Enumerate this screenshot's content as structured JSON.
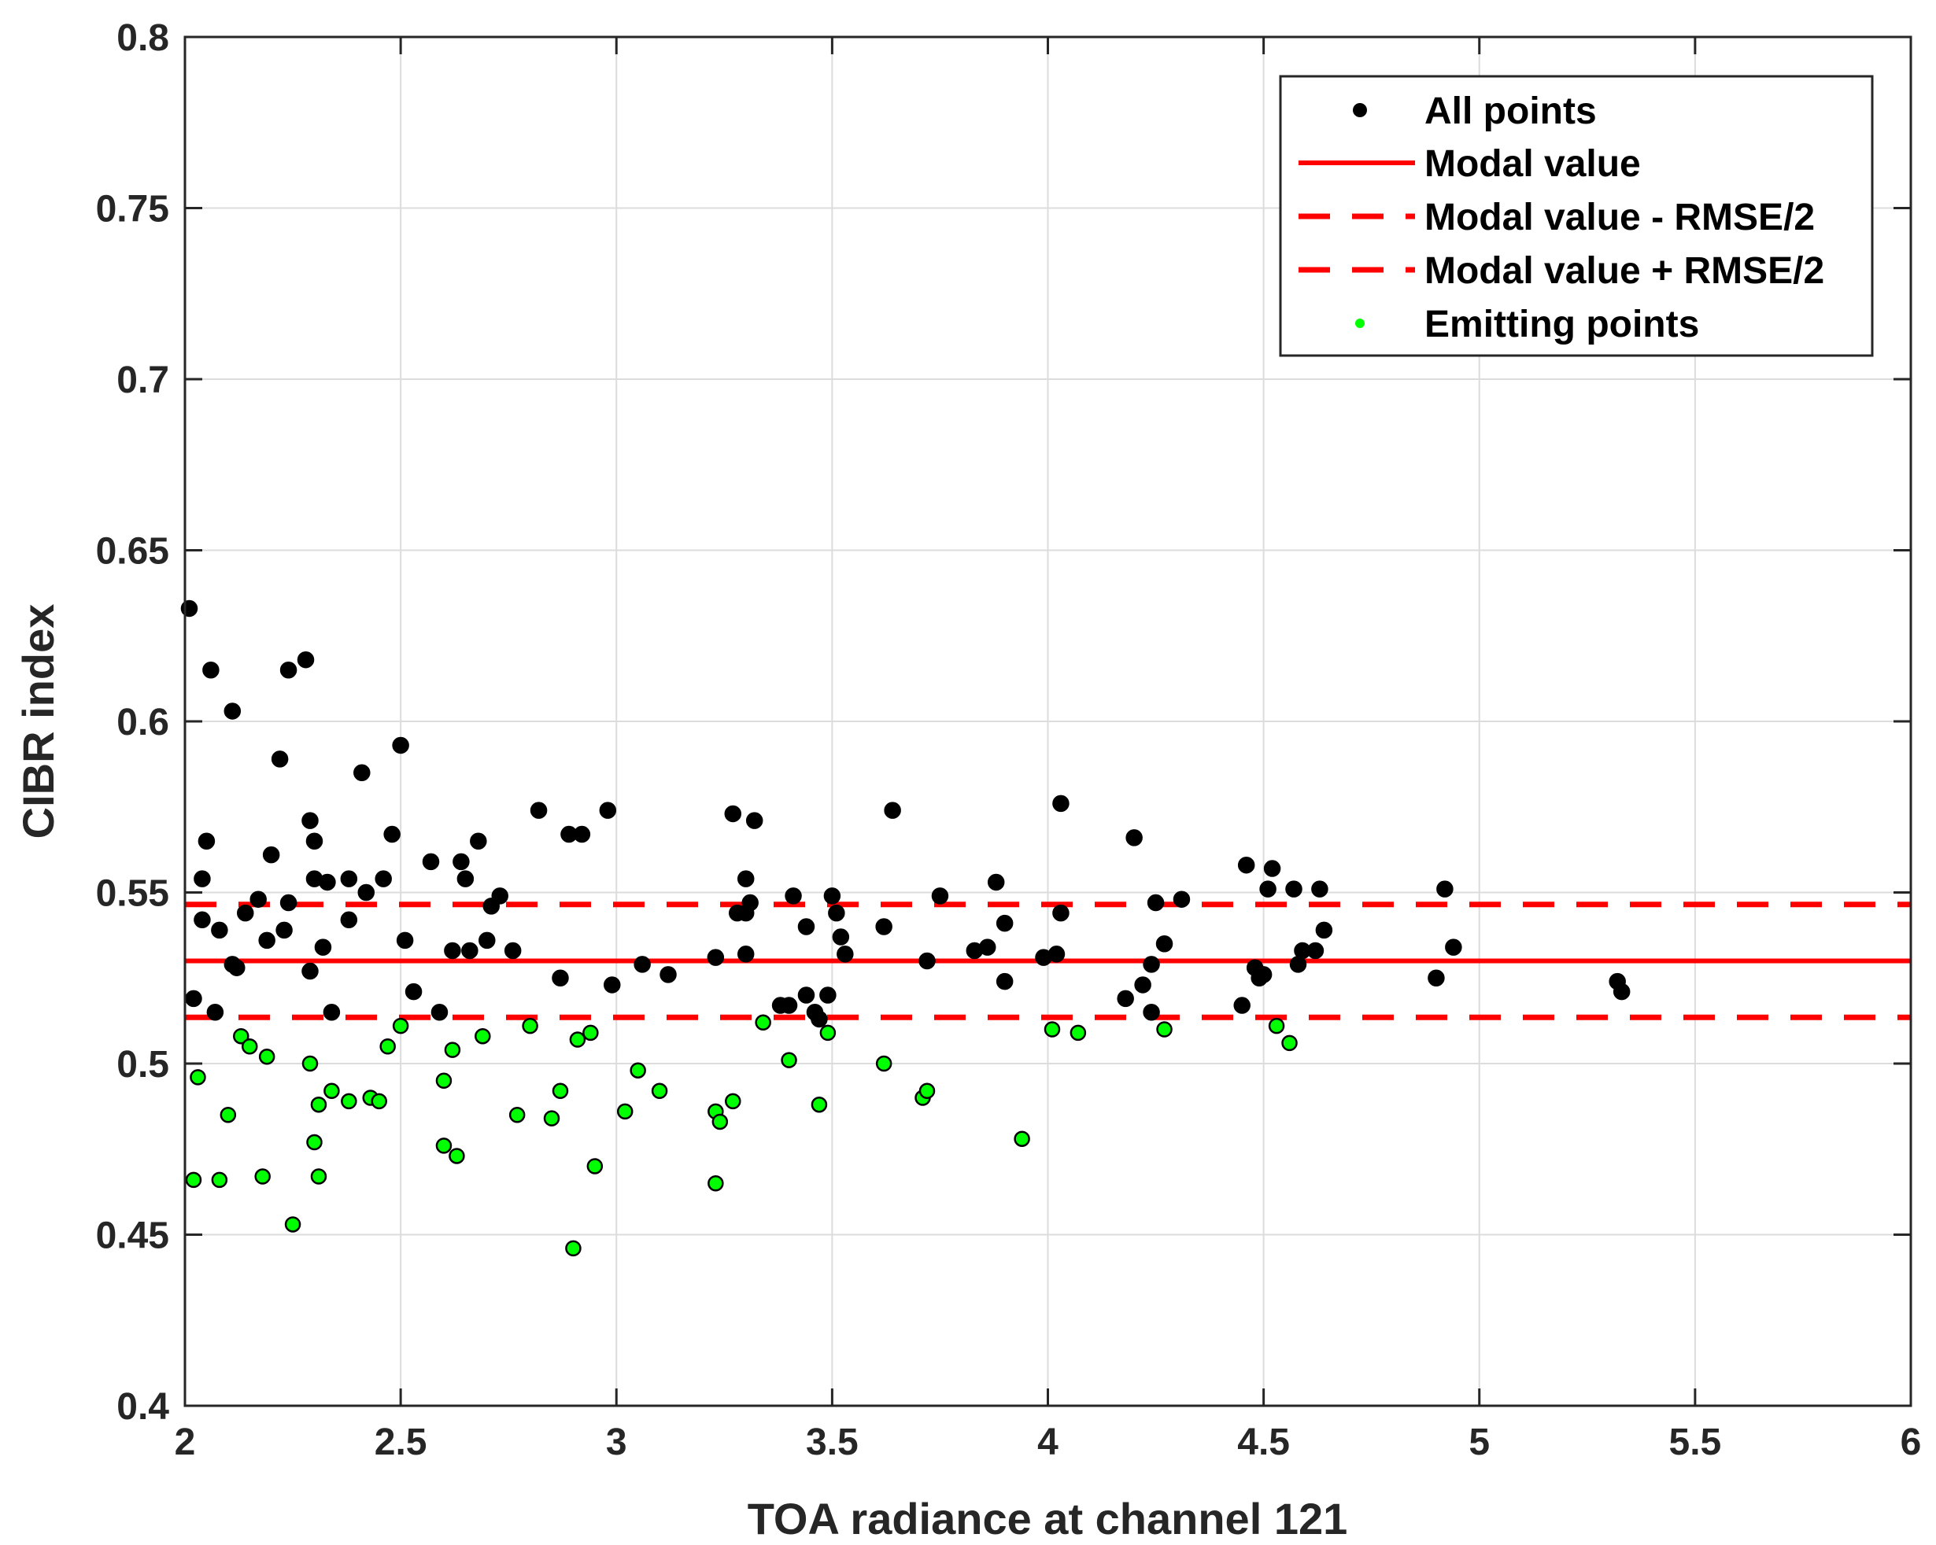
{
  "chart_data": {
    "type": "scatter",
    "xlabel": "TOA radiance at channel 121",
    "ylabel": "CIBR index",
    "xlim": [
      2,
      6
    ],
    "ylim": [
      0.4,
      0.8
    ],
    "xticks": [
      2,
      2.5,
      3,
      3.5,
      4,
      4.5,
      5,
      5.5,
      6
    ],
    "xtick_labels": [
      "2",
      "2.5",
      "3",
      "3.5",
      "4",
      "4.5",
      "5",
      "5.5",
      "6"
    ],
    "yticks": [
      0.4,
      0.45,
      0.5,
      0.55,
      0.6,
      0.65,
      0.7,
      0.75,
      0.8
    ],
    "ytick_labels": [
      "0.4",
      "0.45",
      "0.5",
      "0.55",
      "0.6",
      "0.65",
      "0.7",
      "0.75",
      "0.8"
    ],
    "grid": true,
    "legend_position": "top-right",
    "colors": {
      "all": "#000000",
      "emitting": "#00ff00",
      "modal": "#ff0000",
      "axis": "#262626",
      "grid": "#dcdcdc"
    },
    "lines": {
      "modal": 0.53,
      "lower": 0.5135,
      "upper": 0.5465
    },
    "legend": [
      {
        "label": "All points",
        "style": "black-dot"
      },
      {
        "label": "Modal value",
        "style": "solid-red"
      },
      {
        "label": "Modal value - RMSE/2",
        "style": "dashed-red"
      },
      {
        "label": "Modal value + RMSE/2",
        "style": "dashed-red"
      },
      {
        "label": "Emitting points",
        "style": "green-dot"
      }
    ],
    "series": [
      {
        "name": "All points",
        "points": [
          [
            2.01,
            0.633
          ],
          [
            2.02,
            0.519
          ],
          [
            2.04,
            0.554
          ],
          [
            2.04,
            0.542
          ],
          [
            2.05,
            0.565
          ],
          [
            2.06,
            0.615
          ],
          [
            2.07,
            0.515
          ],
          [
            2.08,
            0.539
          ],
          [
            2.11,
            0.603
          ],
          [
            2.11,
            0.529
          ],
          [
            2.12,
            0.528
          ],
          [
            2.14,
            0.544
          ],
          [
            2.17,
            0.548
          ],
          [
            2.19,
            0.536
          ],
          [
            2.2,
            0.561
          ],
          [
            2.22,
            0.589
          ],
          [
            2.23,
            0.539
          ],
          [
            2.24,
            0.547
          ],
          [
            2.24,
            0.615
          ],
          [
            2.28,
            0.618
          ],
          [
            2.29,
            0.527
          ],
          [
            2.29,
            0.571
          ],
          [
            2.3,
            0.565
          ],
          [
            2.3,
            0.554
          ],
          [
            2.32,
            0.534
          ],
          [
            2.33,
            0.553
          ],
          [
            2.34,
            0.515
          ],
          [
            2.38,
            0.542
          ],
          [
            2.38,
            0.554
          ],
          [
            2.41,
            0.585
          ],
          [
            2.42,
            0.55
          ],
          [
            2.46,
            0.554
          ],
          [
            2.48,
            0.567
          ],
          [
            2.5,
            0.593
          ],
          [
            2.51,
            0.536
          ],
          [
            2.53,
            0.521
          ],
          [
            2.57,
            0.559
          ],
          [
            2.59,
            0.515
          ],
          [
            2.62,
            0.533
          ],
          [
            2.64,
            0.559
          ],
          [
            2.65,
            0.554
          ],
          [
            2.66,
            0.533
          ],
          [
            2.68,
            0.565
          ],
          [
            2.7,
            0.536
          ],
          [
            2.71,
            0.546
          ],
          [
            2.73,
            0.549
          ],
          [
            2.76,
            0.533
          ],
          [
            2.82,
            0.574
          ],
          [
            2.87,
            0.525
          ],
          [
            2.89,
            0.567
          ],
          [
            2.92,
            0.567
          ],
          [
            2.98,
            0.574
          ],
          [
            2.99,
            0.523
          ],
          [
            3.06,
            0.529
          ],
          [
            3.12,
            0.526
          ],
          [
            3.23,
            0.531
          ],
          [
            3.27,
            0.573
          ],
          [
            3.28,
            0.544
          ],
          [
            3.3,
            0.554
          ],
          [
            3.3,
            0.544
          ],
          [
            3.3,
            0.532
          ],
          [
            3.31,
            0.547
          ],
          [
            3.32,
            0.571
          ],
          [
            3.38,
            0.517
          ],
          [
            3.4,
            0.517
          ],
          [
            3.41,
            0.549
          ],
          [
            3.44,
            0.52
          ],
          [
            3.44,
            0.54
          ],
          [
            3.46,
            0.515
          ],
          [
            3.47,
            0.513
          ],
          [
            3.49,
            0.52
          ],
          [
            3.5,
            0.549
          ],
          [
            3.51,
            0.544
          ],
          [
            3.52,
            0.537
          ],
          [
            3.53,
            0.532
          ],
          [
            3.62,
            0.54
          ],
          [
            3.64,
            0.574
          ],
          [
            3.72,
            0.53
          ],
          [
            3.75,
            0.549
          ],
          [
            3.83,
            0.533
          ],
          [
            3.86,
            0.534
          ],
          [
            3.88,
            0.553
          ],
          [
            3.9,
            0.541
          ],
          [
            3.9,
            0.524
          ],
          [
            3.99,
            0.531
          ],
          [
            4.02,
            0.532
          ],
          [
            4.03,
            0.544
          ],
          [
            4.03,
            0.576
          ],
          [
            4.18,
            0.519
          ],
          [
            4.2,
            0.566
          ],
          [
            4.22,
            0.523
          ],
          [
            4.24,
            0.515
          ],
          [
            4.24,
            0.529
          ],
          [
            4.25,
            0.547
          ],
          [
            4.27,
            0.535
          ],
          [
            4.31,
            0.548
          ],
          [
            4.45,
            0.517
          ],
          [
            4.46,
            0.558
          ],
          [
            4.48,
            0.528
          ],
          [
            4.49,
            0.525
          ],
          [
            4.5,
            0.526
          ],
          [
            4.51,
            0.551
          ],
          [
            4.52,
            0.557
          ],
          [
            4.57,
            0.551
          ],
          [
            4.58,
            0.529
          ],
          [
            4.59,
            0.533
          ],
          [
            4.62,
            0.533
          ],
          [
            4.63,
            0.551
          ],
          [
            4.64,
            0.539
          ],
          [
            4.9,
            0.525
          ],
          [
            4.92,
            0.551
          ],
          [
            4.94,
            0.534
          ],
          [
            5.32,
            0.524
          ],
          [
            5.33,
            0.521
          ]
        ]
      },
      {
        "name": "Emitting points",
        "points": [
          [
            2.02,
            0.466
          ],
          [
            2.03,
            0.496
          ],
          [
            2.08,
            0.466
          ],
          [
            2.1,
            0.485
          ],
          [
            2.13,
            0.508
          ],
          [
            2.15,
            0.505
          ],
          [
            2.18,
            0.467
          ],
          [
            2.19,
            0.502
          ],
          [
            2.25,
            0.453
          ],
          [
            2.29,
            0.5
          ],
          [
            2.3,
            0.477
          ],
          [
            2.31,
            0.488
          ],
          [
            2.31,
            0.467
          ],
          [
            2.34,
            0.492
          ],
          [
            2.38,
            0.489
          ],
          [
            2.43,
            0.49
          ],
          [
            2.45,
            0.489
          ],
          [
            2.47,
            0.505
          ],
          [
            2.5,
            0.511
          ],
          [
            2.6,
            0.495
          ],
          [
            2.6,
            0.476
          ],
          [
            2.62,
            0.504
          ],
          [
            2.63,
            0.473
          ],
          [
            2.69,
            0.508
          ],
          [
            2.77,
            0.485
          ],
          [
            2.8,
            0.511
          ],
          [
            2.85,
            0.484
          ],
          [
            2.87,
            0.492
          ],
          [
            2.9,
            0.446
          ],
          [
            2.91,
            0.507
          ],
          [
            2.94,
            0.509
          ],
          [
            2.95,
            0.47
          ],
          [
            3.02,
            0.486
          ],
          [
            3.05,
            0.498
          ],
          [
            3.1,
            0.492
          ],
          [
            3.23,
            0.465
          ],
          [
            3.23,
            0.486
          ],
          [
            3.24,
            0.483
          ],
          [
            3.27,
            0.489
          ],
          [
            3.34,
            0.512
          ],
          [
            3.4,
            0.501
          ],
          [
            3.47,
            0.488
          ],
          [
            3.49,
            0.509
          ],
          [
            3.62,
            0.5
          ],
          [
            3.71,
            0.49
          ],
          [
            3.72,
            0.492
          ],
          [
            3.94,
            0.478
          ],
          [
            4.01,
            0.51
          ],
          [
            4.07,
            0.509
          ],
          [
            4.27,
            0.51
          ],
          [
            4.53,
            0.511
          ],
          [
            4.56,
            0.506
          ]
        ]
      }
    ]
  }
}
